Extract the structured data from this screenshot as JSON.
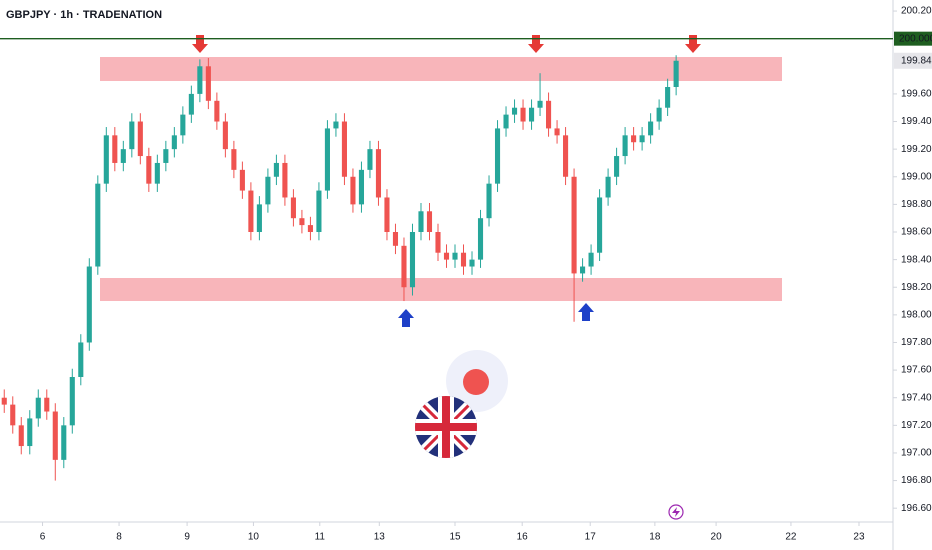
{
  "chart_data": {
    "type": "candlestick",
    "title": "GBPJPY · 1h · TRADENATION",
    "open": [
      197.4,
      197.35,
      197.2,
      197.05,
      197.25,
      197.4,
      197.3,
      196.95,
      197.2,
      197.55,
      197.8,
      198.35,
      198.95,
      199.3,
      199.1,
      199.2,
      199.4,
      199.15,
      198.95,
      199.1,
      199.2,
      199.3,
      199.45,
      199.6,
      199.8,
      199.55,
      199.4,
      199.2,
      199.05,
      198.9,
      198.6,
      198.8,
      199.0,
      199.1,
      198.85,
      198.7,
      198.65,
      198.6,
      198.9,
      199.35,
      199.4,
      199.0,
      198.8,
      199.05,
      199.2,
      198.85,
      198.6,
      198.5,
      198.2,
      198.6,
      198.75,
      198.6,
      198.45,
      198.4,
      198.45,
      198.35,
      198.4,
      198.7,
      198.95,
      199.35,
      199.45,
      199.5,
      199.4,
      199.5,
      199.55,
      199.35,
      199.3,
      199.0,
      198.3,
      198.35,
      198.45,
      198.85,
      199.0,
      199.15,
      199.3,
      199.25,
      199.3,
      199.4,
      199.5,
      199.65
    ],
    "high": [
      197.46,
      197.41,
      197.26,
      197.31,
      197.46,
      197.46,
      197.36,
      197.26,
      197.61,
      197.86,
      198.41,
      199.01,
      199.36,
      199.36,
      199.26,
      199.46,
      199.46,
      199.21,
      199.16,
      199.26,
      199.36,
      199.51,
      199.66,
      199.85,
      199.86,
      199.61,
      199.46,
      199.26,
      199.11,
      198.96,
      198.86,
      199.06,
      199.16,
      199.16,
      198.91,
      198.76,
      198.71,
      198.96,
      199.41,
      199.46,
      199.46,
      199.06,
      199.11,
      199.26,
      199.26,
      198.91,
      198.66,
      198.56,
      198.66,
      198.81,
      198.81,
      198.66,
      198.51,
      198.51,
      198.51,
      198.46,
      198.76,
      199.01,
      199.41,
      199.51,
      199.56,
      199.56,
      199.56,
      199.75,
      199.61,
      199.41,
      199.36,
      199.06,
      198.41,
      198.51,
      198.91,
      199.06,
      199.21,
      199.36,
      199.36,
      199.36,
      199.46,
      199.56,
      199.71,
      199.88
    ],
    "low": [
      197.29,
      197.14,
      196.99,
      196.99,
      197.19,
      197.24,
      196.8,
      196.89,
      197.14,
      197.49,
      197.74,
      198.29,
      198.89,
      199.04,
      199.04,
      199.14,
      199.09,
      198.89,
      198.89,
      199.04,
      199.14,
      199.24,
      199.39,
      199.54,
      199.49,
      199.34,
      199.14,
      198.99,
      198.84,
      198.54,
      198.54,
      198.74,
      198.94,
      198.79,
      198.64,
      198.59,
      198.54,
      198.54,
      198.84,
      199.29,
      198.94,
      198.74,
      198.74,
      198.99,
      198.79,
      198.54,
      198.44,
      198.1,
      198.14,
      198.54,
      198.54,
      198.39,
      198.34,
      198.34,
      198.29,
      198.29,
      198.34,
      198.64,
      198.89,
      199.29,
      199.39,
      199.34,
      199.34,
      199.44,
      199.29,
      199.24,
      198.94,
      197.95,
      198.24,
      198.29,
      198.39,
      198.79,
      198.94,
      199.09,
      199.19,
      199.19,
      199.24,
      199.34,
      199.44,
      199.59
    ],
    "close": [
      197.35,
      197.2,
      197.05,
      197.25,
      197.4,
      197.3,
      196.95,
      197.2,
      197.55,
      197.8,
      198.35,
      198.95,
      199.3,
      199.1,
      199.2,
      199.4,
      199.15,
      198.95,
      199.1,
      199.2,
      199.3,
      199.45,
      199.6,
      199.8,
      199.55,
      199.4,
      199.2,
      199.05,
      198.9,
      198.6,
      198.8,
      199.0,
      199.1,
      198.85,
      198.7,
      198.65,
      198.6,
      198.9,
      199.35,
      199.4,
      199.0,
      198.8,
      199.05,
      199.2,
      198.85,
      198.6,
      198.5,
      198.2,
      198.6,
      198.75,
      198.6,
      198.45,
      198.4,
      198.45,
      198.35,
      198.4,
      198.7,
      198.95,
      199.35,
      199.45,
      199.5,
      199.4,
      199.5,
      199.55,
      199.35,
      199.3,
      199.0,
      198.3,
      198.35,
      198.45,
      198.85,
      199.0,
      199.15,
      199.3,
      199.25,
      199.3,
      199.4,
      199.5,
      199.65,
      199.84
    ],
    "up_color": "#26a69a",
    "down_color": "#ef5350",
    "xlim": [
      0,
      105
    ],
    "xticks": [
      {
        "value": 5,
        "label": "6"
      },
      {
        "value": 14,
        "label": "8"
      },
      {
        "value": 22,
        "label": "9"
      },
      {
        "value": 29.8,
        "label": "10"
      },
      {
        "value": 37.6,
        "label": "11"
      },
      {
        "value": 44.6,
        "label": "13"
      },
      {
        "value": 53.5,
        "label": "15"
      },
      {
        "value": 61.4,
        "label": "16"
      },
      {
        "value": 69.4,
        "label": "17"
      },
      {
        "value": 77,
        "label": "18"
      },
      {
        "value": 84.2,
        "label": "20"
      },
      {
        "value": 93,
        "label": "22"
      },
      {
        "value": 101,
        "label": "23"
      }
    ],
    "ylim": [
      196.5,
      200.28
    ],
    "yticks": [
      {
        "value": 196.6,
        "label": "196.600"
      },
      {
        "value": 196.8,
        "label": "196.800"
      },
      {
        "value": 197,
        "label": "197.000"
      },
      {
        "value": 197.2,
        "label": "197.200"
      },
      {
        "value": 197.4,
        "label": "197.400"
      },
      {
        "value": 197.6,
        "label": "197.600"
      },
      {
        "value": 197.8,
        "label": "197.800"
      },
      {
        "value": 198,
        "label": "198.000"
      },
      {
        "value": 198.2,
        "label": "198.200"
      },
      {
        "value": 198.4,
        "label": "198.400"
      },
      {
        "value": 198.6,
        "label": "198.600"
      },
      {
        "value": 198.8,
        "label": "198.800"
      },
      {
        "value": 199,
        "label": "199.000"
      },
      {
        "value": 199.2,
        "label": "199.200"
      },
      {
        "value": 199.4,
        "label": "199.400"
      },
      {
        "value": 199.6,
        "label": "199.600"
      },
      {
        "value": 200.2,
        "label": "200.200"
      }
    ],
    "hline": {
      "value": 200,
      "label": "200.000",
      "color": "#1e5e20"
    },
    "last_price": {
      "value": 199.84,
      "label": "199.840"
    }
  }
}
